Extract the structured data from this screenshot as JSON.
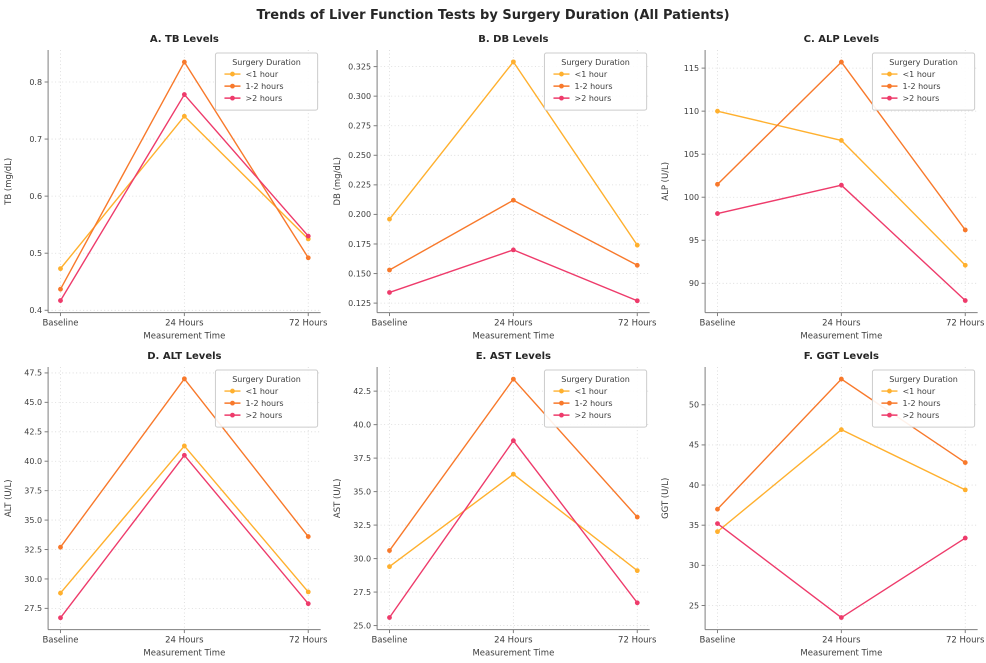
{
  "figure": {
    "title": "Trends of Liver Function Tests by Surgery Duration (All Patients)"
  },
  "colors": {
    "series": [
      "#FFB02E",
      "#F8792B",
      "#EE3B6B"
    ],
    "grid": "#d8d8d8",
    "spine": "#7f7f7f",
    "tick": "#555555",
    "text": "#3d3d3d",
    "title": "#262626",
    "legend_border": "#cccccc"
  },
  "legend": {
    "title": "Surgery Duration",
    "position": "upper right",
    "entries": [
      "<1 hour",
      "1-2 hours",
      ">2 hours"
    ]
  },
  "chart_data": [
    {
      "type": "line",
      "title": "A. TB Levels",
      "xlabel": "Measurement Time",
      "ylabel": "TB (mg/dL)",
      "categories": [
        "Baseline",
        "24 Hours",
        "72 Hours"
      ],
      "xlim": [
        -0.1,
        2.1
      ],
      "ylim": [
        0.396,
        0.856
      ],
      "yticks": [
        0.4,
        0.5,
        0.6,
        0.7,
        0.8
      ],
      "ytick_labels": [
        "0.4",
        "0.5",
        "0.6",
        "0.7",
        "0.8"
      ],
      "grid": true,
      "legend_position": "upper right",
      "series": [
        {
          "name": "<1 hour",
          "values": [
            0.473,
            0.74,
            0.525
          ]
        },
        {
          "name": "1-2 hours",
          "values": [
            0.437,
            0.835,
            0.492
          ]
        },
        {
          "name": ">2 hours",
          "values": [
            0.417,
            0.778,
            0.53
          ]
        }
      ]
    },
    {
      "type": "line",
      "title": "B. DB Levels",
      "xlabel": "Measurement Time",
      "ylabel": "DB (mg/dL)",
      "categories": [
        "Baseline",
        "24 Hours",
        "72 Hours"
      ],
      "xlim": [
        -0.1,
        2.1
      ],
      "ylim": [
        0.117,
        0.339
      ],
      "yticks": [
        0.125,
        0.15,
        0.175,
        0.2,
        0.225,
        0.25,
        0.275,
        0.3,
        0.325
      ],
      "ytick_labels": [
        "0.125",
        "0.150",
        "0.175",
        "0.200",
        "0.225",
        "0.250",
        "0.275",
        "0.300",
        "0.325"
      ],
      "grid": true,
      "legend_position": "upper right",
      "series": [
        {
          "name": "<1 hour",
          "values": [
            0.196,
            0.329,
            0.174
          ]
        },
        {
          "name": "1-2 hours",
          "values": [
            0.153,
            0.212,
            0.157
          ]
        },
        {
          "name": ">2 hours",
          "values": [
            0.134,
            0.17,
            0.127
          ]
        }
      ]
    },
    {
      "type": "line",
      "title": "C. ALP Levels",
      "xlabel": "Measurement Time",
      "ylabel": "ALP (U/L)",
      "categories": [
        "Baseline",
        "24 Hours",
        "72 Hours"
      ],
      "xlim": [
        -0.1,
        2.1
      ],
      "ylim": [
        86.6,
        117.1
      ],
      "yticks": [
        90,
        95,
        100,
        105,
        110,
        115
      ],
      "ytick_labels": [
        "90",
        "95",
        "100",
        "105",
        "110",
        "115"
      ],
      "grid": true,
      "legend_position": "upper right",
      "series": [
        {
          "name": "<1 hour",
          "values": [
            110.0,
            106.6,
            92.1
          ]
        },
        {
          "name": "1-2 hours",
          "values": [
            101.5,
            115.7,
            96.2
          ]
        },
        {
          "name": ">2 hours",
          "values": [
            98.1,
            101.4,
            88.0
          ]
        }
      ]
    },
    {
      "type": "line",
      "title": "D. ALT Levels",
      "xlabel": "Measurement Time",
      "ylabel": "ALT (U/L)",
      "categories": [
        "Baseline",
        "24 Hours",
        "72 Hours"
      ],
      "xlim": [
        -0.1,
        2.1
      ],
      "ylim": [
        25.7,
        48.0
      ],
      "yticks": [
        27.5,
        30.0,
        32.5,
        35.0,
        37.5,
        40.0,
        42.5,
        45.0,
        47.5
      ],
      "ytick_labels": [
        "27.5",
        "30.0",
        "32.5",
        "35.0",
        "37.5",
        "40.0",
        "42.5",
        "45.0",
        "47.5"
      ],
      "grid": true,
      "legend_position": "upper right",
      "series": [
        {
          "name": "<1 hour",
          "values": [
            28.8,
            41.3,
            28.9
          ]
        },
        {
          "name": "1-2 hours",
          "values": [
            32.7,
            47.0,
            33.6
          ]
        },
        {
          "name": ">2 hours",
          "values": [
            26.7,
            40.5,
            27.9
          ]
        }
      ]
    },
    {
      "type": "line",
      "title": "E. AST Levels",
      "xlabel": "Measurement Time",
      "ylabel": "AST (U/L)",
      "categories": [
        "Baseline",
        "24 Hours",
        "72 Hours"
      ],
      "xlim": [
        -0.1,
        2.1
      ],
      "ylim": [
        24.7,
        44.3
      ],
      "yticks": [
        25.0,
        27.5,
        30.0,
        32.5,
        35.0,
        37.5,
        40.0,
        42.5
      ],
      "ytick_labels": [
        "25.0",
        "27.5",
        "30.0",
        "32.5",
        "35.0",
        "37.5",
        "40.0",
        "42.5"
      ],
      "grid": true,
      "legend_position": "upper right",
      "series": [
        {
          "name": "<1 hour",
          "values": [
            29.4,
            36.3,
            29.1
          ]
        },
        {
          "name": "1-2 hours",
          "values": [
            30.6,
            43.4,
            33.1
          ]
        },
        {
          "name": ">2 hours",
          "values": [
            25.6,
            38.8,
            26.7
          ]
        }
      ]
    },
    {
      "type": "line",
      "title": "F. GGT Levels",
      "xlabel": "Measurement Time",
      "ylabel": "GGT (U/L)",
      "categories": [
        "Baseline",
        "24 Hours",
        "72 Hours"
      ],
      "xlim": [
        -0.1,
        2.1
      ],
      "ylim": [
        22.0,
        54.7
      ],
      "yticks": [
        25,
        30,
        35,
        40,
        45,
        50
      ],
      "ytick_labels": [
        "25",
        "30",
        "35",
        "40",
        "45",
        "50"
      ],
      "grid": true,
      "legend_position": "upper right",
      "series": [
        {
          "name": "<1 hour",
          "values": [
            34.2,
            46.9,
            39.4
          ]
        },
        {
          "name": "1-2 hours",
          "values": [
            37.0,
            53.2,
            42.8
          ]
        },
        {
          "name": ">2 hours",
          "values": [
            35.2,
            23.5,
            33.4
          ]
        }
      ]
    }
  ]
}
